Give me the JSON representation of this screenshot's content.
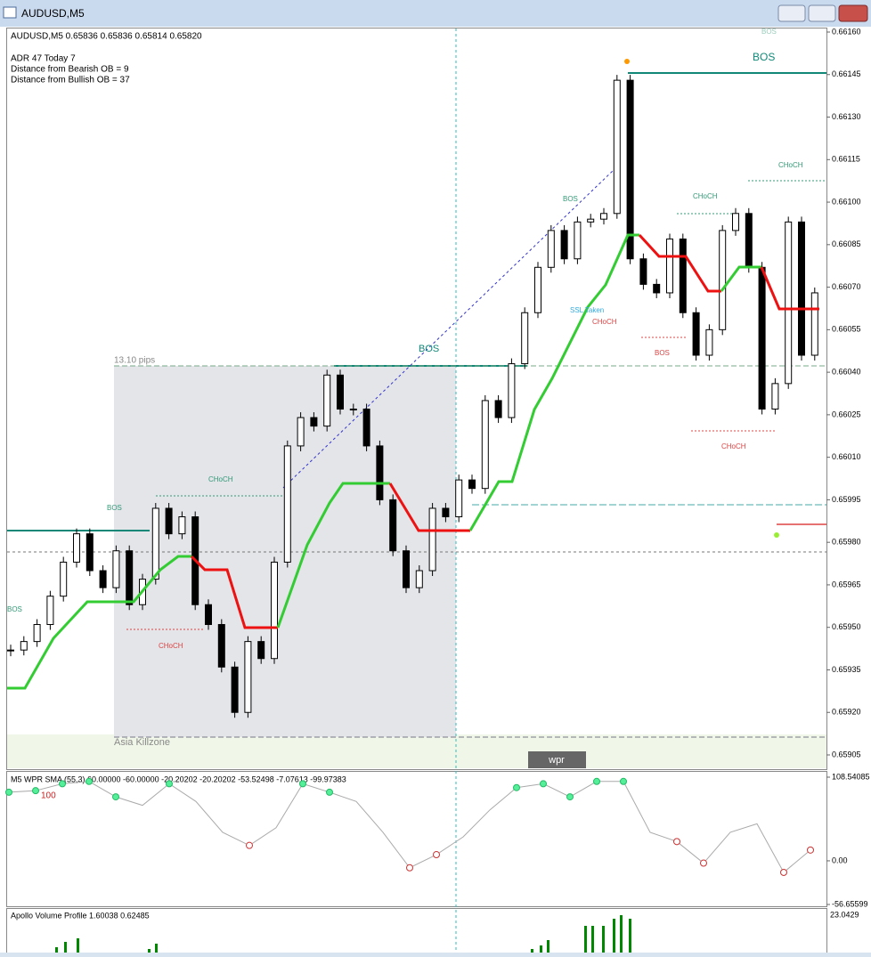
{
  "window": {
    "title": "AUDUSD,M5"
  },
  "chart_data": {
    "type": "candlestick",
    "header": "AUDUSD,M5  0.65836 0.65836 0.65814 0.65820",
    "info": [
      "ADR 47  Today 7",
      "Distance from Bearish OB = 9",
      "Distance from Bullish OB = 37"
    ],
    "annotations": [
      "BOS",
      "BOS",
      "BOS",
      "BOS",
      "BOS",
      "BOS",
      "BOS",
      "CHoCH",
      "CHoCH",
      "CHoCH",
      "CHoCH",
      "CHoCH",
      "CHoCH",
      "13.10 pips",
      "Asia Killzone",
      "SSL Taken",
      "wpr"
    ],
    "close": [
      0.65942,
      0.65945,
      0.65951,
      0.65961,
      0.65973,
      0.65983,
      0.6597,
      0.65964,
      0.65977,
      0.65958,
      0.65967,
      0.65992,
      0.65983,
      0.65989,
      0.65958,
      0.65951,
      0.65936,
      0.6592,
      0.65945,
      0.65939,
      0.65973,
      0.66014,
      0.66024,
      0.66021,
      0.66039,
      0.66027,
      0.66027,
      0.66014,
      0.65995,
      0.65977,
      0.65964,
      0.6597,
      0.65992,
      0.65989,
      0.66002,
      0.65999,
      0.6603,
      0.66024,
      0.66043,
      0.66061,
      0.66077,
      0.6609,
      0.6608,
      0.66093,
      0.66094,
      0.66096,
      0.66143,
      0.6608,
      0.66071,
      0.66068,
      0.66087,
      0.66061,
      0.66046,
      0.66055,
      0.6609,
      0.66096,
      0.66077,
      0.66027,
      0.66036,
      0.66093,
      0.66046,
      0.66068
    ],
    "ylim": [
      0.65905,
      0.6616
    ],
    "yticks": [
      {
        "value": 0.6616,
        "label": "0.66160"
      },
      {
        "value": 0.66145,
        "label": "0.66145"
      },
      {
        "value": 0.6613,
        "label": "0.66130"
      },
      {
        "value": 0.66115,
        "label": "0.66115"
      },
      {
        "value": 0.661,
        "label": "0.66100"
      },
      {
        "value": 0.66085,
        "label": "0.66085"
      },
      {
        "value": 0.6607,
        "label": "0.66070"
      },
      {
        "value": 0.66055,
        "label": "0.66055"
      },
      {
        "value": 0.6604,
        "label": "0.66040"
      },
      {
        "value": 0.66025,
        "label": "0.66025"
      },
      {
        "value": 0.6601,
        "label": "0.66010"
      },
      {
        "value": 0.65995,
        "label": "0.65995"
      },
      {
        "value": 0.6598,
        "label": "0.65980"
      },
      {
        "value": 0.65965,
        "label": "0.65965"
      },
      {
        "value": 0.6595,
        "label": "0.65950"
      },
      {
        "value": 0.65935,
        "label": "0.65935"
      },
      {
        "value": 0.6592,
        "label": "0.65920"
      },
      {
        "value": 0.65905,
        "label": "0.65905"
      }
    ],
    "wpr": {
      "header": "M5 WPR  SMA (55,3) 60.00000 -60.00000 -20.20202 -20.20202 -53.52498 -7.07613 -99.97383",
      "level_label": "100",
      "values": [
        89,
        91,
        100,
        103,
        83,
        72,
        100,
        77,
        37,
        20,
        43,
        100,
        89,
        77,
        37,
        -9,
        8,
        31,
        66,
        95,
        100,
        83,
        103,
        103,
        37,
        25,
        -3,
        37,
        48,
        -15,
        14
      ],
      "ylim": [
        -56.65599,
        108.54085
      ],
      "yticks": [
        {
          "value": 108.54085,
          "label": "108.54085"
        },
        {
          "value": 0,
          "label": "0.00"
        },
        {
          "value": -56.65599,
          "label": "-56.65599"
        }
      ]
    },
    "volume": {
      "header": "Apollo Volume Profile 1.60038 0.62485",
      "top_label": "23.0429"
    }
  }
}
